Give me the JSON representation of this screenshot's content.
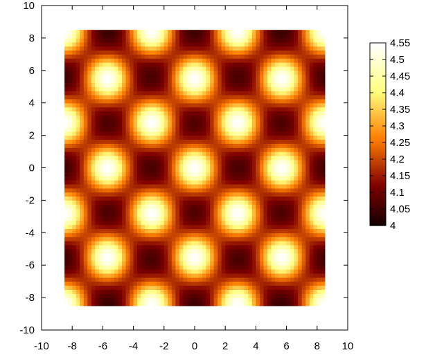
{
  "chart_data": {
    "type": "heatmap",
    "title": "",
    "xlabel": "",
    "ylabel": "",
    "xlim": [
      -10,
      10
    ],
    "ylim": [
      -10,
      10
    ],
    "x_ticks": [
      -10,
      -8,
      -6,
      -4,
      -2,
      0,
      2,
      4,
      6,
      8,
      10
    ],
    "y_ticks": [
      -10,
      -8,
      -6,
      -4,
      -2,
      0,
      2,
      4,
      6,
      8,
      10
    ],
    "data_extent": {
      "x": [
        -8.5,
        8.5
      ],
      "y": [
        -8.5,
        8.5
      ]
    },
    "grid": false,
    "colorbar": {
      "range": [
        4,
        4.55
      ],
      "ticks": [
        4,
        4.05,
        4.1,
        4.15,
        4.2,
        4.25,
        4.3,
        4.35,
        4.4,
        4.45,
        4.5,
        4.55
      ],
      "tick_labels": [
        "4",
        "4.05",
        "4.1",
        "4.15",
        "4.2",
        "4.25",
        "4.3",
        "4.35",
        "4.4",
        "4.45",
        "4.5",
        "4.55"
      ],
      "placement": "right",
      "colormap": "afmhot"
    },
    "peaks": [
      {
        "x": -8.5,
        "y": 8.4
      },
      {
        "x": -2.8,
        "y": 8.4
      },
      {
        "x": 2.8,
        "y": 8.4
      },
      {
        "x": 8.5,
        "y": 8.4
      },
      {
        "x": -5.7,
        "y": 5.5
      },
      {
        "x": 0.0,
        "y": 5.5
      },
      {
        "x": 5.7,
        "y": 5.5
      },
      {
        "x": -8.5,
        "y": 2.8
      },
      {
        "x": -2.8,
        "y": 2.8
      },
      {
        "x": 2.8,
        "y": 2.8
      },
      {
        "x": 8.5,
        "y": 2.8
      },
      {
        "x": -5.7,
        "y": 0.0
      },
      {
        "x": 0.0,
        "y": 0.0
      },
      {
        "x": 5.7,
        "y": 0.0
      },
      {
        "x": -8.5,
        "y": -2.8
      },
      {
        "x": -2.8,
        "y": -2.8
      },
      {
        "x": 2.8,
        "y": -2.8
      },
      {
        "x": 8.5,
        "y": -2.8
      },
      {
        "x": -5.7,
        "y": -5.5
      },
      {
        "x": 0.0,
        "y": -5.5
      },
      {
        "x": 5.7,
        "y": -5.5
      },
      {
        "x": -8.5,
        "y": -8.4
      },
      {
        "x": -2.8,
        "y": -8.4
      },
      {
        "x": 2.8,
        "y": -8.4
      },
      {
        "x": 8.5,
        "y": -8.4
      }
    ],
    "peak_value": 4.55,
    "min_value": 4.0,
    "description_level": "surface value grid; bright peaks on a triangular lattice, dark wells between"
  }
}
